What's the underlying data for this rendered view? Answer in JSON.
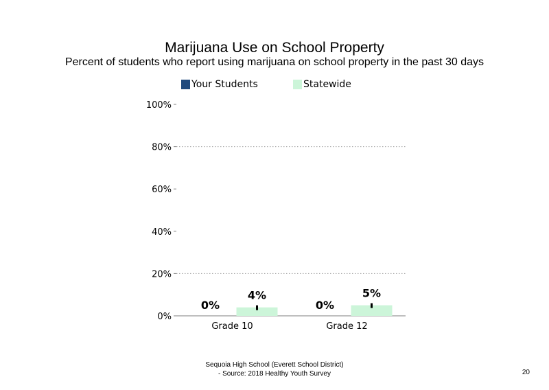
{
  "chart_data": {
    "type": "bar",
    "title": "Marijuana  Use on School Property",
    "subtitle": "Percent of students  who report using marijuana  on school property in the past 30 days",
    "categories": [
      "Grade 10",
      "Grade 12"
    ],
    "series": [
      {
        "name": "Your Students",
        "values": [
          0,
          0
        ],
        "labels": [
          "0%",
          "0%"
        ],
        "color": "#1f497d"
      },
      {
        "name": "Statewide",
        "values": [
          4,
          5
        ],
        "labels": [
          "4%",
          "5%"
        ],
        "color": "#ccf5d9",
        "error_bars": true
      }
    ],
    "yticks": [
      "0%",
      "20%",
      "40%",
      "60%",
      "80%",
      "100%"
    ],
    "ylim": [
      0,
      100
    ],
    "gridlines": [
      20,
      80
    ],
    "legend_position": "top"
  },
  "footer": {
    "line1": "Sequoia High  School (Everett School District)",
    "line2": "- Source: 2018 Healthy  Youth Survey"
  },
  "page_number": "20"
}
